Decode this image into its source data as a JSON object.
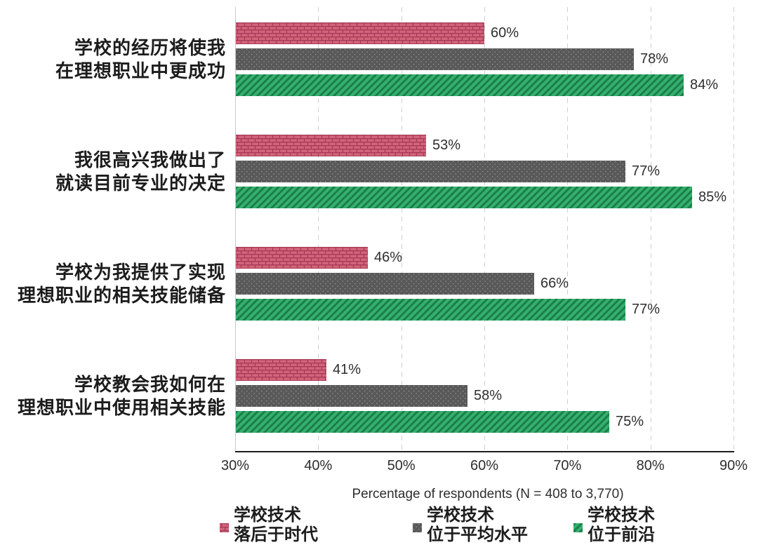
{
  "chart_data": {
    "type": "bar",
    "orientation": "horizontal",
    "categories": [
      [
        "学校的经历将使我",
        "在理想职业中更成功"
      ],
      [
        "我很高兴我做出了",
        "就读目前专业的决定"
      ],
      [
        "学校为我提供了实现",
        "理想职业的相关技能储备"
      ],
      [
        "学校教会我如何在",
        "理想职业中使用相关技能"
      ]
    ],
    "series": [
      {
        "key": "behind",
        "name": "学校技术 落后于时代",
        "name_lines": [
          "学校技术",
          "落后于时代"
        ],
        "pattern": "brick",
        "values": [
          60,
          53,
          46,
          41
        ]
      },
      {
        "key": "average",
        "name": "学校技术 位于平均水平",
        "name_lines": [
          "学校技术",
          "位于平均水平"
        ],
        "pattern": "dots",
        "values": [
          78,
          77,
          66,
          58
        ]
      },
      {
        "key": "leading",
        "name": "学校技术 位于前沿",
        "name_lines": [
          "学校技术",
          "位于前沿"
        ],
        "pattern": "diagonal",
        "values": [
          84,
          85,
          77,
          75
        ]
      }
    ],
    "value_suffix": "%",
    "xlabel": "Percentage of respondents (N = 408 to 3,770)",
    "xlim": [
      30,
      90
    ],
    "x_ticks": [
      {
        "v": 30,
        "label": "30%"
      },
      {
        "v": 40,
        "label": "40%"
      },
      {
        "v": 50,
        "label": "50%"
      },
      {
        "v": 60,
        "label": "60%"
      },
      {
        "v": 70,
        "label": "70%"
      },
      {
        "v": 80,
        "label": "80%"
      },
      {
        "v": 90,
        "label": "90%"
      }
    ],
    "grid": "vertical-dashed",
    "legend_position": "bottom",
    "colors": {
      "brick_fill": "#d2647c",
      "brick_line": "#a93a56",
      "dots_fill": "#595959",
      "dots_dot": "#9a9a9a",
      "diagonal_fill": "#35b06e",
      "diagonal_stripe": "#1b7f48",
      "axis_line": "#1d1d1d",
      "grid_line": "#d0d0d0",
      "text": "#2e2e2e"
    }
  }
}
